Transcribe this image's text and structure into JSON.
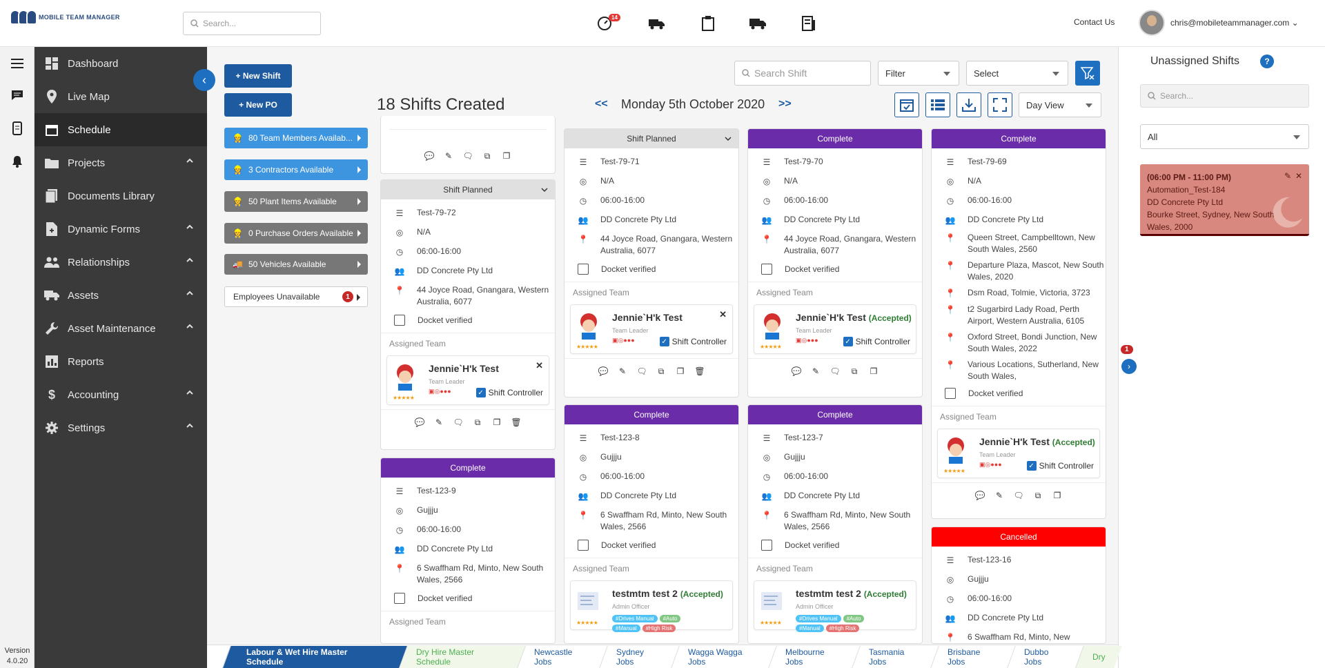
{
  "header": {
    "logo_text": "MOBILE TEAM MANAGER",
    "search_placeholder": "Search...",
    "notif_count": "14",
    "contact": "Contact Us",
    "email": "chris@mobileteammanager.com"
  },
  "version": "Version 4.0.20",
  "sidebar": {
    "items": [
      {
        "label": "Dashboard",
        "icon": "dashboard-icon"
      },
      {
        "label": "Live Map",
        "icon": "map-pin-icon"
      },
      {
        "label": "Schedule",
        "icon": "calendar-icon"
      },
      {
        "label": "Projects",
        "icon": "folder-icon"
      },
      {
        "label": "Documents Library",
        "icon": "documents-icon"
      },
      {
        "label": "Dynamic Forms",
        "icon": "form-icon"
      },
      {
        "label": "Relationships",
        "icon": "people-icon"
      },
      {
        "label": "Assets",
        "icon": "truck-icon"
      },
      {
        "label": "Asset Maintenance",
        "icon": "wrench-icon"
      },
      {
        "label": "Reports",
        "icon": "chart-icon"
      },
      {
        "label": "Accounting",
        "icon": "dollar-icon"
      },
      {
        "label": "Settings",
        "icon": "gear-icon"
      }
    ]
  },
  "actions": {
    "new_shift": "+ New Shift",
    "new_po": "+ New PO"
  },
  "availability": [
    {
      "label": "80 Team Members Availab...",
      "style": "blue"
    },
    {
      "label": "3 Contractors Available",
      "style": "blue"
    },
    {
      "label": "50 Plant Items Available",
      "style": "grey"
    },
    {
      "label": "0 Purchase Orders Available",
      "style": "grey"
    },
    {
      "label": "50 Vehicles Available",
      "style": "grey"
    }
  ],
  "unavailable": {
    "label": "Employees Unavailable",
    "count": "1"
  },
  "schedule": {
    "title": "18 Shifts Created",
    "prev": "<<",
    "next": ">>",
    "date": "Monday 5th October 2020",
    "search_placeholder": "Search Shift",
    "filter": "Filter",
    "select": "Select",
    "view": "Day View"
  },
  "labels": {
    "assigned_team": "Assigned Team",
    "docket": "Docket verified",
    "team_leader": "Team Leader",
    "admin_officer": "Admin Officer",
    "shift_controller": "Shift Controller",
    "accepted": "(Accepted)"
  },
  "cards": {
    "c1": {
      "status": "Shift Planned",
      "id": "Test-79-72",
      "client": "N/A",
      "time": "06:00-16:00",
      "company": "DD Concrete Pty Ltd",
      "address": "44 Joyce Road, Gnangara, Western Australia, 6077",
      "member": "Jennie`H'k Test"
    },
    "c2": {
      "status": "Complete",
      "id": "Test-123-9",
      "client": "Gujjju",
      "time": "06:00-16:00",
      "company": "DD Concrete Pty Ltd",
      "address": "6 Swaffham Rd, Minto, New South Wales, 2566"
    },
    "c3": {
      "status": "Shift Planned",
      "id": "Test-79-71",
      "client": "N/A",
      "time": "06:00-16:00",
      "company": "DD Concrete Pty Ltd",
      "address": "44 Joyce Road, Gnangara, Western Australia, 6077",
      "member": "Jennie`H'k Test"
    },
    "c4": {
      "status": "Complete",
      "id": "Test-123-8",
      "client": "Gujjju",
      "time": "06:00-16:00",
      "company": "DD Concrete Pty Ltd",
      "address": "6 Swaffham Rd, Minto, New South Wales, 2566",
      "member": "testmtm test 2"
    },
    "c5": {
      "status": "Complete",
      "id": "Test-79-70",
      "client": "N/A",
      "time": "06:00-16:00",
      "company": "DD Concrete Pty Ltd",
      "address": "44 Joyce Road, Gnangara, Western Australia, 6077",
      "member": "Jennie`H'k Test"
    },
    "c6": {
      "status": "Complete",
      "id": "Test-123-7",
      "client": "Gujjju",
      "time": "06:00-16:00",
      "company": "DD Concrete Pty Ltd",
      "address": "6 Swaffham Rd, Minto, New South Wales, 2566",
      "member": "testmtm test 2"
    },
    "c7": {
      "status": "Complete",
      "id": "Test-79-69",
      "client": "N/A",
      "time": "06:00-16:00",
      "company": "DD Concrete Pty Ltd",
      "addresses": [
        "Queen Street, Campbelltown, New South Wales, 2560",
        "Departure Plaza, Mascot, New South Wales, 2020",
        "Dsm Road, Tolmie, Victoria, 3723",
        "t2 Sugarbird Lady Road, Perth Airport, Western Australia, 6105",
        "Oxford Street, Bondi Junction, New South Wales, 2022",
        "Various Locations, Sutherland, New South Wales,"
      ],
      "member": "Jennie`H'k Test"
    },
    "c8": {
      "status": "Cancelled",
      "id": "Test-123-16",
      "client": "Gujjju",
      "time": "06:00-16:00",
      "company": "DD Concrete Pty Ltd",
      "address": "6 Swaffham Rd, Minto, New"
    }
  },
  "tags": [
    "#Drives Manual",
    "#Auto",
    "#Manual",
    "#High Risk"
  ],
  "unassigned": {
    "title": "Unassigned Shifts",
    "help": "?",
    "search_placeholder": "Search...",
    "filter": "All",
    "card": {
      "time": "(06:00 PM - 11:00 PM)",
      "name": "Automation_Test-184",
      "company": "DD Concrete Pty Ltd",
      "address": "Bourke Street, Sydney, New South Wales, 2000"
    },
    "badge": "1"
  },
  "tabs": [
    "Labour & Wet Hire Master Schedule",
    "Dry Hire Master Schedule",
    "Newcastle Jobs",
    "Sydney Jobs",
    "Wagga Wagga Jobs",
    "Melbourne Jobs",
    "Tasmania Jobs",
    "Brisbane Jobs",
    "Dubbo Jobs",
    "Dry"
  ]
}
